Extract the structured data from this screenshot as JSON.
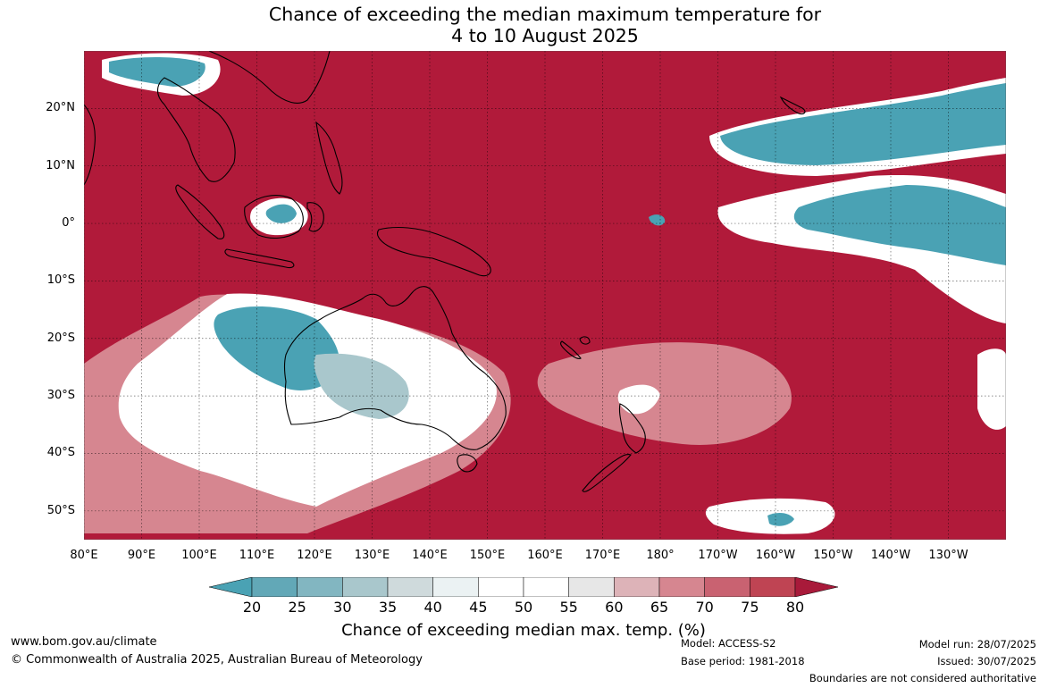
{
  "title": {
    "line1": "Chance of exceeding the median maximum temperature for",
    "line2": "4 to 10 August 2025"
  },
  "map": {
    "lat_labels": [
      "20°N",
      "10°N",
      "0°",
      "10°S",
      "20°S",
      "30°S",
      "40°S",
      "50°S"
    ],
    "lon_labels": [
      "80°E",
      "90°E",
      "100°E",
      "110°E",
      "120°E",
      "130°E",
      "140°E",
      "150°E",
      "160°E",
      "170°E",
      "180°",
      "170°W",
      "160°W",
      "150°W",
      "140°W",
      "130°W"
    ],
    "lon_range": [
      80,
      240
    ],
    "lat_range": [
      -55,
      30
    ],
    "background_color": "#b11a3a",
    "high_color": "#b11a3a",
    "low_color": "#4aa2b4",
    "neutral_color": "#ffffff",
    "coastline_color": "#000000",
    "grid": "dotted"
  },
  "colorbar": {
    "ticks": [
      "20",
      "25",
      "30",
      "35",
      "40",
      "45",
      "50",
      "55",
      "60",
      "65",
      "70",
      "75",
      "80"
    ],
    "colors": [
      "#4aa2b4",
      "#62a8b7",
      "#82b6c1",
      "#a9c7cc",
      "#cfdadc",
      "#ebf2f3",
      "#ffffff",
      "#ffffff",
      "#e7e7e7",
      "#ddb3b8",
      "#d68690",
      "#c96271",
      "#bf4453",
      "#a81a3a"
    ],
    "label": "Chance of exceeding median max. temp. (%)"
  },
  "footer": {
    "website": "www.bom.gov.au/climate",
    "copyright": "© Commonwealth of Australia 2025, Australian Bureau of Meteorology",
    "model": "Model: ACCESS-S2",
    "base_period": "Base period: 1981-2018",
    "model_run": "Model run: 28/07/2025",
    "issued": "Issued: 30/07/2025",
    "disclaimer": "Boundaries are not considered authoritative"
  }
}
